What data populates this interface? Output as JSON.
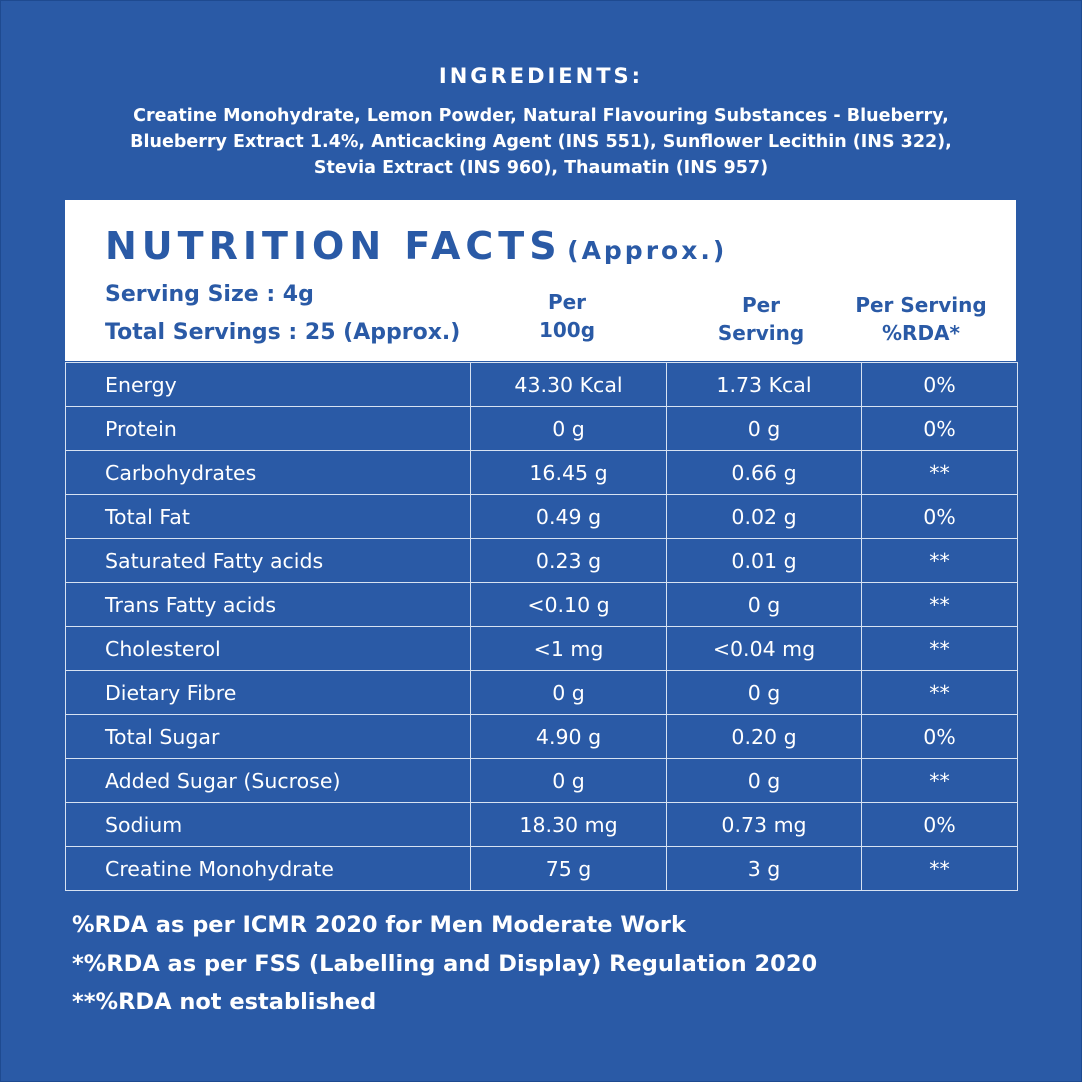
{
  "ingredients": {
    "title": "INGREDIENTS:",
    "lines": [
      "Creatine Monohydrate, Lemon Powder, Natural Flavouring Substances - Blueberry,",
      "Blueberry Extract 1.4%, Anticacking Agent (INS 551), Sunflower Lecithin (INS 322),",
      "Stevia Extract (INS 960), Thaumatin (INS 957)"
    ]
  },
  "nutrition": {
    "title": "NUTRITION FACTS",
    "title_suffix": "(Approx.)",
    "serving_size": "Serving Size : 4g",
    "total_servings": "Total Servings : 25 (Approx.)",
    "columns": [
      "Per\n100g",
      "Per\nServing",
      "Per Serving\n%RDA*"
    ],
    "rows": [
      {
        "name": "Energy",
        "per100": "43.30 Kcal",
        "perServing": "1.73 Kcal",
        "rda": "0%"
      },
      {
        "name": "Protein",
        "per100": "0 g",
        "perServing": "0 g",
        "rda": "0%"
      },
      {
        "name": "Carbohydrates",
        "per100": "16.45 g",
        "perServing": "0.66 g",
        "rda": "**"
      },
      {
        "name": "Total Fat",
        "per100": "0.49 g",
        "perServing": "0.02 g",
        "rda": "0%"
      },
      {
        "name": "Saturated Fatty acids",
        "per100": "0.23 g",
        "perServing": "0.01 g",
        "rda": "**"
      },
      {
        "name": "Trans Fatty acids",
        "per100": "<0.10 g",
        "perServing": "0 g",
        "rda": "**"
      },
      {
        "name": "Cholesterol",
        "per100": "<1 mg",
        "perServing": "<0.04 mg",
        "rda": "**"
      },
      {
        "name": "Dietary Fibre",
        "per100": "0 g",
        "perServing": "0 g",
        "rda": "**"
      },
      {
        "name": "Total Sugar",
        "per100": "4.90 g",
        "perServing": "0.20 g",
        "rda": "0%"
      },
      {
        "name": "Added Sugar (Sucrose)",
        "per100": "0 g",
        "perServing": "0 g",
        "rda": "**"
      },
      {
        "name": "Sodium",
        "per100": "18.30 mg",
        "perServing": "0.73 mg",
        "rda": "0%"
      },
      {
        "name": "Creatine Monohydrate",
        "per100": "75 g",
        "perServing": "3 g",
        "rda": "**"
      }
    ]
  },
  "footnotes": [
    "%RDA as per ICMR 2020 for Men Moderate Work",
    "*%RDA as per FSS (Labelling and Display) Regulation 2020",
    "**%RDA not established"
  ],
  "colors": {
    "background": "#2a5aa6",
    "panel": "#ffffff",
    "text": "#ffffff",
    "grid_lines": "#d7e2f2"
  }
}
